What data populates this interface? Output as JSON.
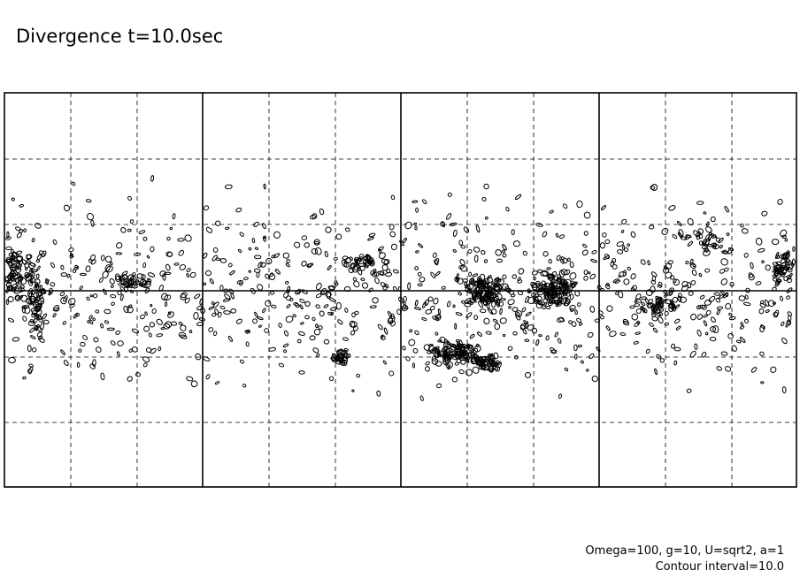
{
  "header": {
    "title": "Divergence t=10.0sec"
  },
  "footer": {
    "lines": [
      "Omega=100, g=10, U=sqrt2, a=1",
      "Contour interval=10.0"
    ]
  }
}
